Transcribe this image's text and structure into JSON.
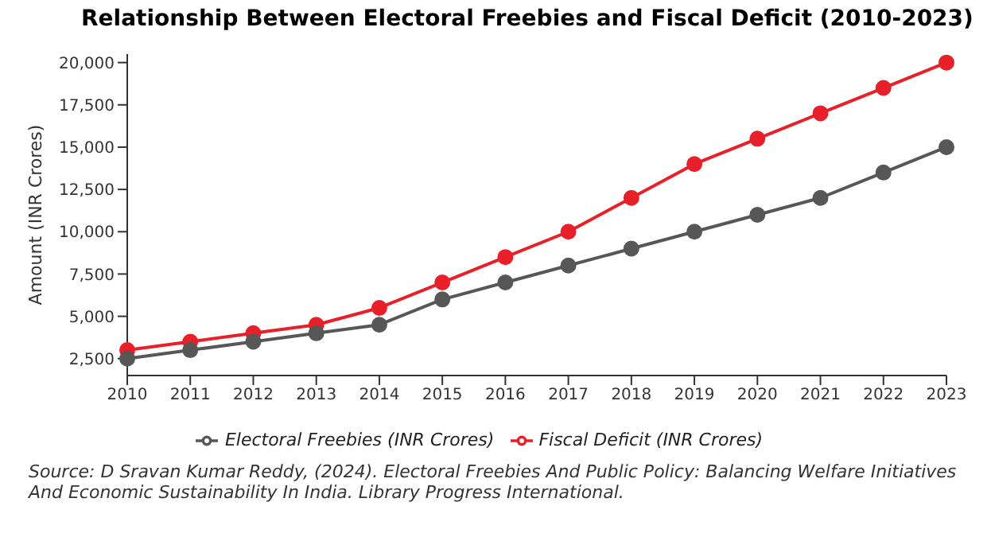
{
  "chart_data": {
    "type": "line",
    "title": "Relationship Between Electoral Freebies and Fiscal Deficit (2010-2023)",
    "ylabel": "Amount (INR Crores)",
    "categories": [
      "2010",
      "2011",
      "2012",
      "2013",
      "2014",
      "2015",
      "2016",
      "2017",
      "2018",
      "2019",
      "2020",
      "2021",
      "2022",
      "2023"
    ],
    "series": [
      {
        "name": "Fiscal Deficit (INR Crores)",
        "color": "#e8202a",
        "values": [
          3000,
          3500,
          4000,
          4500,
          5500,
          7000,
          8500,
          10000,
          12000,
          14000,
          15500,
          17000,
          18500,
          20000
        ]
      },
      {
        "name": "Electoral Freebies (INR Crores)",
        "color": "#575757",
        "values": [
          2500,
          3000,
          3500,
          4000,
          4500,
          6000,
          7000,
          8000,
          9000,
          10000,
          11000,
          12000,
          13500,
          15000
        ]
      }
    ],
    "ylim": [
      1500,
      20500
    ],
    "yticks": [
      {
        "value": 2500,
        "label": "2,500"
      },
      {
        "value": 5000,
        "label": "5,000"
      },
      {
        "value": 7500,
        "label": "7,500"
      },
      {
        "value": 10000,
        "label": "10,000"
      },
      {
        "value": 12500,
        "label": "12,500"
      },
      {
        "value": 15000,
        "label": "15,000"
      },
      {
        "value": 17500,
        "label": "17,500"
      },
      {
        "value": 20000,
        "label": "20,000"
      }
    ],
    "grid": false,
    "legend": "bottom",
    "marker": "circle",
    "line_style": "solid",
    "annotations": [
      "Source: D Sravan Kumar Reddy, (2024). Electoral Freebies And Public Policy: Balancing Welfare Initiatives And Economic Sustainability In India. Library Progress International."
    ]
  }
}
